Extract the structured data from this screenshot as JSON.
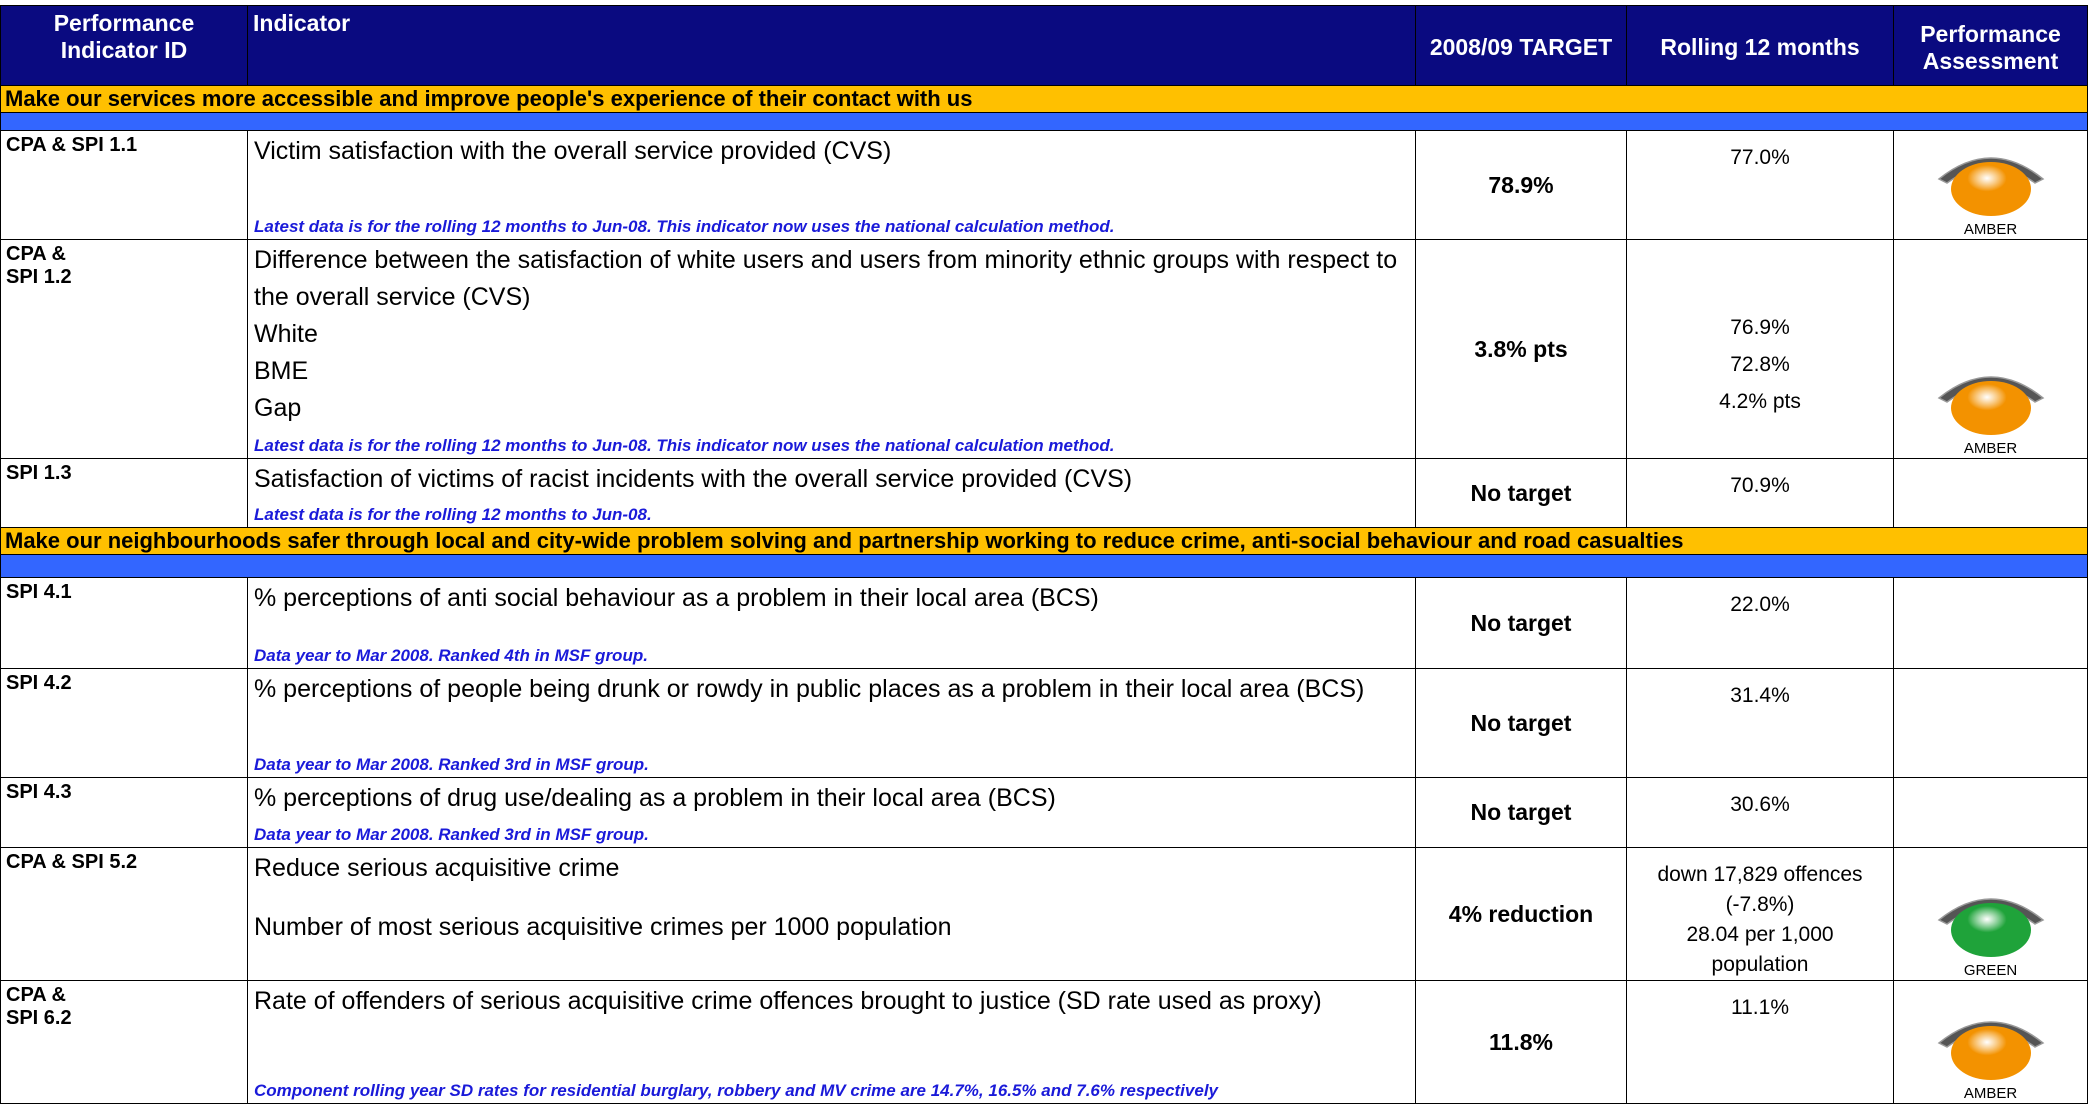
{
  "header": [
    "Performance Indicator ID",
    "Indicator",
    "2008/09 TARGET",
    "Rolling 12 months",
    "Performance Assessment"
  ],
  "sections": [
    {
      "title": "Make our services more accessible and improve people's experience of their contact with us",
      "rows": [
        {
          "id": "CPA & SPI 1.1",
          "indicator": [
            "Victim satisfaction with the overall service provided (CVS)"
          ],
          "note": "Latest data is for the rolling 12 months to Jun-08.  This indicator now uses the national calculation method.",
          "target": "78.9%",
          "rolling": [
            "77.0%"
          ],
          "assessment": {
            "label": "AMBER",
            "color": "#f39200"
          }
        },
        {
          "id": "CPA &\nSPI 1.2",
          "indicator": [
            "Difference between the satisfaction of white users and users from minority ethnic groups with respect to the overall service (CVS)",
            "White",
            "BME",
            "Gap"
          ],
          "note": "Latest data is for the rolling 12 months to Jun-08.  This indicator now uses the national calculation method.",
          "target": "3.8% pts",
          "rolling": [
            "76.9%",
            "72.8%",
            "4.2% pts"
          ],
          "assessment": {
            "label": "AMBER",
            "color": "#f39200"
          }
        },
        {
          "id": "SPI 1.3",
          "indicator": [
            "Satisfaction of victims of racist incidents with the overall service provided (CVS)"
          ],
          "note": "Latest data is for the rolling 12 months to Jun-08.",
          "target": "No target",
          "rolling": [
            "70.9%"
          ]
        }
      ]
    },
    {
      "title": "Make our neighbourhoods safer through local and city-wide problem solving and partnership working to reduce crime, anti-social behaviour and road casualties",
      "rows": [
        {
          "id": "SPI 4.1",
          "indicator": [
            "% perceptions of anti social behaviour as a problem in their local area (BCS)"
          ],
          "note": "Data year to Mar 2008.  Ranked 4th in MSF group.",
          "target": "No target",
          "rolling": [
            "22.0%"
          ]
        },
        {
          "id": "SPI 4.2",
          "indicator": [
            "% perceptions of people being drunk or rowdy in public places as a problem in their local area (BCS)"
          ],
          "note": "Data year to Mar 2008.  Ranked 3rd in MSF group.",
          "target": "No target",
          "rolling": [
            "31.4%"
          ]
        },
        {
          "id": "SPI 4.3",
          "indicator": [
            "% perceptions of drug use/dealing as a problem in their local area (BCS)"
          ],
          "note": "Data year to Mar 2008.  Ranked 3rd in MSF group.",
          "target": "No target",
          "rolling": [
            "30.6%"
          ]
        },
        {
          "id": "CPA & SPI 5.2",
          "indicator": [
            "Reduce serious acquisitive crime",
            "Number of most serious acquisitive crimes per 1000 population"
          ],
          "target": "4% reduction",
          "rolling": [
            "down 17,829 offences\n(-7.8%)",
            "28.04 per 1,000\npopulation"
          ],
          "assessment": {
            "label": "GREEN",
            "color": "#1fa33a"
          }
        },
        {
          "id": "CPA &\nSPI 6.2",
          "indicator": [
            "Rate of offenders of serious acquisitive crime offences brought to justice (SD rate used as proxy)"
          ],
          "note": "Component rolling year SD rates for residential burglary, robbery and MV crime are 14.7%, 16.5% and 7.6% respectively",
          "target": "11.8%",
          "rolling": [
            "11.1%"
          ],
          "assessment": {
            "label": "AMBER",
            "color": "#f39200"
          }
        }
      ]
    }
  ]
}
